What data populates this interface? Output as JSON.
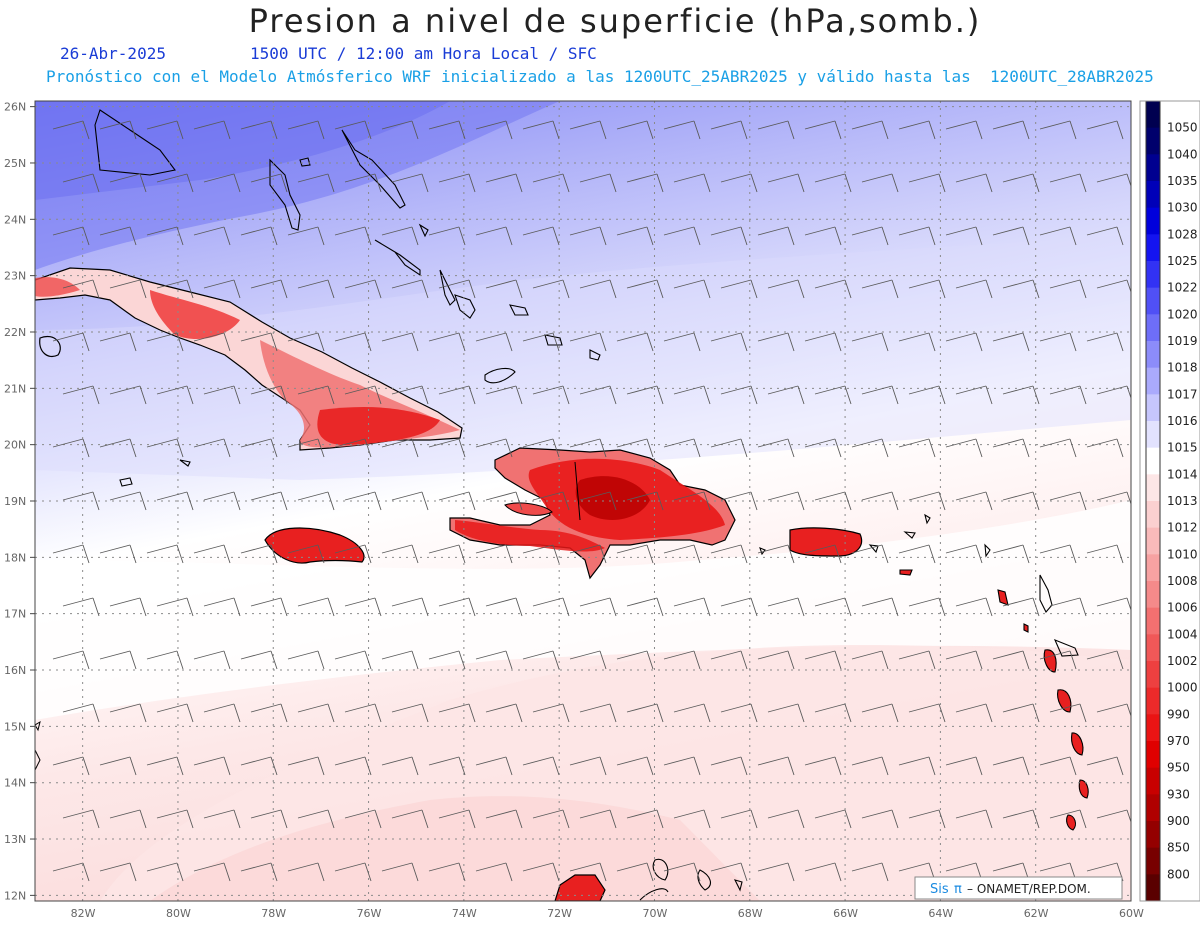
{
  "header": {
    "title": "Presion a nivel de superficie (hPa,somb.)",
    "date": "26-Abr-2025",
    "time_info": "1500 UTC / 12:00 am Hora Local / SFC",
    "model_info": "Pronóstico con el Modelo Atmósferico WRF inicializado a las 1200UTC_25ABR2025 y válido hasta las  1200UTC_28ABR2025"
  },
  "map": {
    "lat_labels": [
      "26N",
      "25N",
      "24N",
      "23N",
      "22N",
      "21N",
      "20N",
      "19N",
      "18N",
      "17N",
      "16N",
      "15N",
      "14N",
      "13N",
      "12N"
    ],
    "lon_labels": [
      "82W",
      "80W",
      "78W",
      "76W",
      "74W",
      "72W",
      "70W",
      "68W",
      "66W",
      "64W",
      "62W",
      "60W"
    ],
    "credit_prefix": "Sis",
    "credit_symbol": "π",
    "credit_text": "– ONAMET/REP.DOM.",
    "colors": {
      "high_pressure": "#6a6ef2",
      "neutral": "#ffffff",
      "low_pressure": "#e8121a",
      "grid": "#8a8a8a",
      "coast": "#000000",
      "wind_barb": "#5a5a5a"
    }
  },
  "colorbar": {
    "levels": [
      {
        "label": "1050",
        "color": "#000050"
      },
      {
        "label": "1040",
        "color": "#00006c"
      },
      {
        "label": "1035",
        "color": "#000090"
      },
      {
        "label": "1030",
        "color": "#0000b8"
      },
      {
        "label": "1028",
        "color": "#0000dc"
      },
      {
        "label": "1025",
        "color": "#1414f0"
      },
      {
        "label": "1022",
        "color": "#3232f4"
      },
      {
        "label": "1020",
        "color": "#5050f6"
      },
      {
        "label": "1019",
        "color": "#6e6ef8"
      },
      {
        "label": "1018",
        "color": "#8c8cfa"
      },
      {
        "label": "1017",
        "color": "#aaaafc"
      },
      {
        "label": "1016",
        "color": "#c6c6fd"
      },
      {
        "label": "1015",
        "color": "#e2e2fe"
      },
      {
        "label": "1014",
        "color": "#ffffff"
      },
      {
        "label": "1013",
        "color": "#fde6e6"
      },
      {
        "label": "1012",
        "color": "#fbd0d0"
      },
      {
        "label": "1010",
        "color": "#f9baba"
      },
      {
        "label": "1008",
        "color": "#f7a2a2"
      },
      {
        "label": "1006",
        "color": "#f58a8a"
      },
      {
        "label": "1004",
        "color": "#f37070"
      },
      {
        "label": "1002",
        "color": "#f05858"
      },
      {
        "label": "1000",
        "color": "#ee4040"
      },
      {
        "label": "990",
        "color": "#ec2a2a"
      },
      {
        "label": "970",
        "color": "#ea1414"
      },
      {
        "label": "950",
        "color": "#e00000"
      },
      {
        "label": "930",
        "color": "#c80000"
      },
      {
        "label": "900",
        "color": "#b00000"
      },
      {
        "label": "850",
        "color": "#940000"
      },
      {
        "label": "800",
        "color": "#780000"
      },
      {
        "label": "",
        "color": "#5a0000"
      }
    ]
  }
}
